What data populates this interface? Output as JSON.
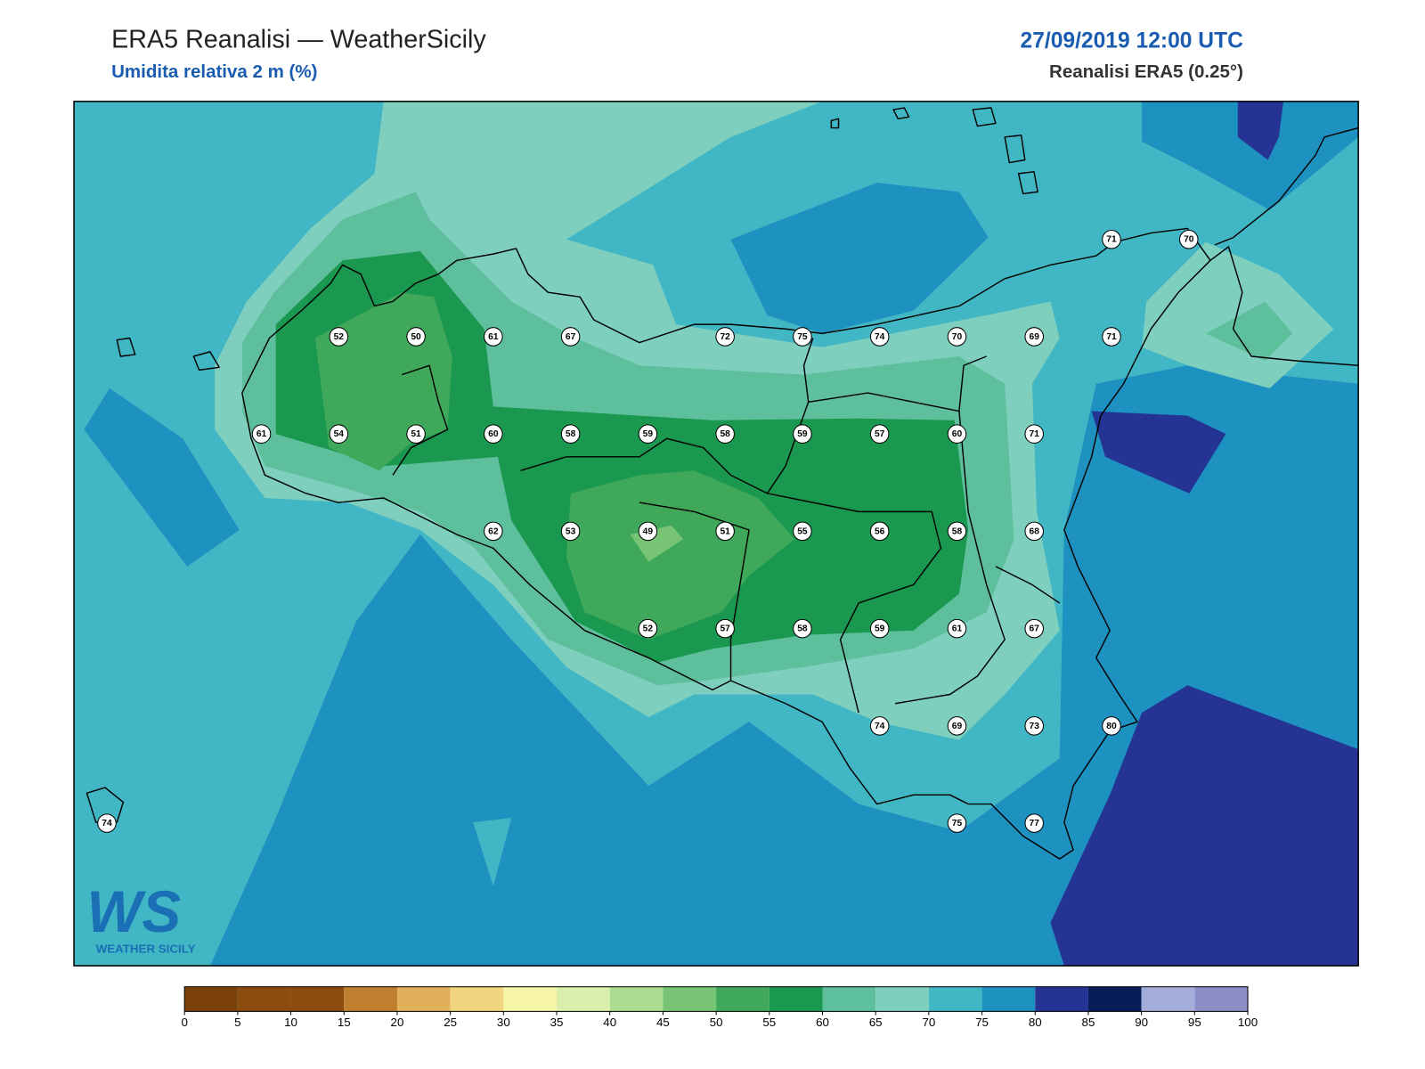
{
  "header": {
    "title": "ERA5 Reanalisi — WeatherSicily",
    "subtitle": "Umidita relativa 2 m (%)",
    "date": "27/09/2019 12:00 UTC",
    "source": "Reanalisi ERA5 (0.25°)"
  },
  "station_grid": [
    [
      null,
      null,
      null,
      null,
      null,
      null,
      null,
      null,
      null,
      null,
      null,
      null,
      null,
      71,
      70
    ],
    [
      null,
      null,
      null,
      52,
      50,
      61,
      67,
      null,
      72,
      75,
      74,
      70,
      69,
      71,
      null
    ],
    [
      null,
      null,
      61,
      54,
      51,
      60,
      58,
      59,
      58,
      59,
      57,
      60,
      71,
      null,
      null
    ],
    [
      null,
      null,
      null,
      null,
      null,
      62,
      53,
      49,
      51,
      55,
      56,
      58,
      68,
      null,
      null
    ],
    [
      null,
      null,
      null,
      null,
      null,
      null,
      null,
      52,
      57,
      58,
      59,
      61,
      67,
      null,
      null
    ],
    [
      null,
      null,
      null,
      null,
      null,
      null,
      null,
      null,
      null,
      null,
      74,
      69,
      73,
      80,
      null
    ],
    [
      74,
      null,
      null,
      null,
      null,
      null,
      null,
      null,
      null,
      null,
      null,
      75,
      77,
      null,
      null
    ]
  ],
  "colorbar": {
    "ticks": [
      0,
      5,
      10,
      15,
      20,
      25,
      30,
      35,
      40,
      45,
      50,
      55,
      60,
      65,
      70,
      75,
      80,
      85,
      90,
      95,
      100
    ],
    "colors": [
      "#7a420a",
      "#8c4c10",
      "#8c4c10",
      "#bf7f2e",
      "#e1b05b",
      "#f0d57e",
      "#f6f4a6",
      "#d8eeaa",
      "#acdc8f",
      "#77c474",
      "#3fa85a",
      "#1a9850",
      "#5ebf9c",
      "#7fcfbf",
      "#41b6c4",
      "#1d91c0",
      "#253494",
      "#081d58",
      "#a4add9",
      "#8c8ec8"
    ]
  },
  "logo": {
    "mark": "WS",
    "text": "WEATHER SICILY"
  }
}
